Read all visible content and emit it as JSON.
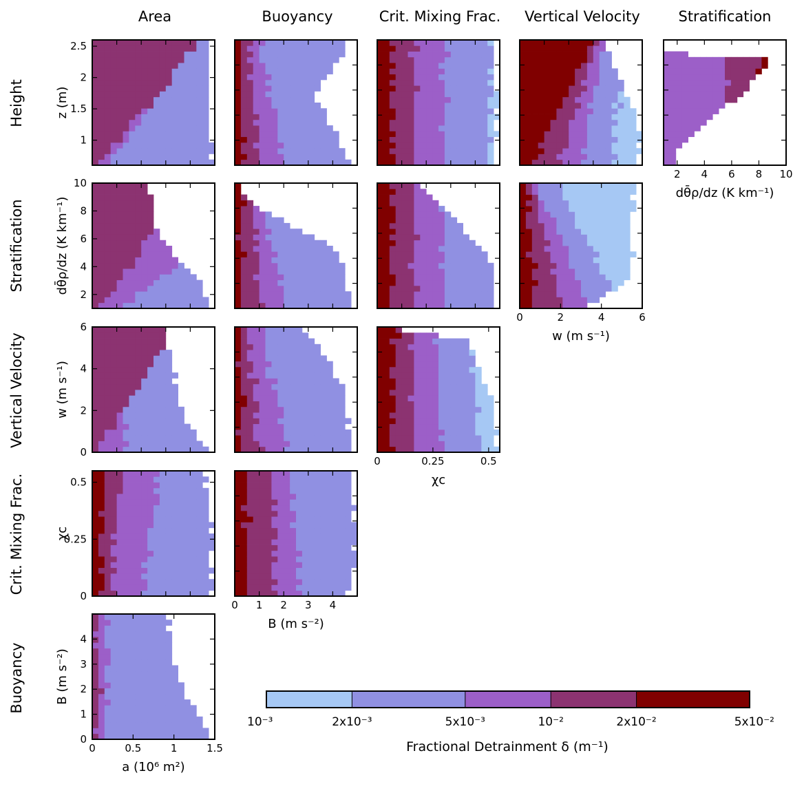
{
  "figure": {
    "column_titles": [
      "Area",
      "Buoyancy",
      "Crit. Mixing Frac.",
      "Vertical Velocity",
      "Stratification"
    ],
    "row_titles": [
      "Height",
      "Stratification",
      "Vertical Velocity",
      "Crit. Mixing Frac.",
      "Buoyancy"
    ],
    "colorbar": {
      "title": "Fractional Detrainment δ (m⁻¹)",
      "tick_labels": [
        "10⁻³",
        "2x10⁻³",
        "5x10⁻³",
        "10⁻²",
        "2x10⁻²",
        "5x10⁻²"
      ],
      "bins": [
        {
          "lo": 0.001,
          "hi": 0.002,
          "color": "#a6c8f4"
        },
        {
          "lo": 0.002,
          "hi": 0.005,
          "color": "#9090e2"
        },
        {
          "lo": 0.005,
          "hi": 0.01,
          "color": "#9c5fc8"
        },
        {
          "lo": 0.01,
          "hi": 0.02,
          "color": "#8c3371"
        },
        {
          "lo": 0.02,
          "hi": 0.05,
          "color": "#800000"
        }
      ]
    }
  },
  "chart_data": [
    {
      "type": "heatmap",
      "row": "Height",
      "column": "Area",
      "xlabel": "",
      "ylabel": "z (m)",
      "xlim": [
        0,
        1.5
      ],
      "ylim": [
        0.6,
        2.6
      ],
      "xticks": [],
      "yticks": [
        "1",
        "1.5",
        "2",
        "2.5"
      ],
      "ytick_values": [
        1,
        1.5,
        2,
        2.5
      ],
      "nx": 20,
      "ny": 22,
      "bounds": [
        [
          0,
          0.0
        ],
        [
          0,
          0.98
        ],
        [
          0.5,
          0.96
        ],
        [
          1,
          0.94
        ],
        [
          1,
          0.92
        ]
      ],
      "zones": [
        [
          0.04,
          0.9,
          0.01
        ],
        [
          0.12,
          0.86,
          0.005
        ],
        [
          1.5,
          1.5,
          0.003
        ]
      ]
    },
    {
      "type": "heatmap",
      "row": "Height",
      "column": "Buoyancy",
      "xlabel": "",
      "ylabel": "",
      "xlim": [
        0,
        5
      ],
      "ylim": [
        0.6,
        2.6
      ],
      "xticks": [],
      "yticks": [],
      "nx": 20,
      "ny": 22,
      "bounds": [
        [
          0,
          0.0
        ],
        [
          0,
          0.95
        ],
        [
          0.55,
          0.65
        ],
        [
          1,
          0.95
        ],
        [
          1,
          0.95
        ]
      ],
      "zones": [
        [
          0.05,
          0.05,
          0.03
        ],
        [
          0.22,
          0.12,
          0.015
        ],
        [
          0.42,
          0.2,
          0.007
        ],
        [
          1.5,
          1.5,
          0.003
        ]
      ]
    },
    {
      "type": "heatmap",
      "row": "Height",
      "column": "Crit. Mixing Frac.",
      "xlabel": "",
      "ylabel": "",
      "xlim": [
        0,
        0.55
      ],
      "ylim": [
        0.6,
        2.6
      ],
      "xticks": [],
      "yticks": [],
      "nx": 20,
      "ny": 22,
      "bounds": [
        [
          0,
          0.0
        ],
        [
          0,
          0.96
        ],
        [
          0.5,
          0.98
        ],
        [
          1,
          0.92
        ],
        [
          1,
          0.9
        ]
      ],
      "zones": [
        [
          0.12,
          0.12,
          0.03
        ],
        [
          0.3,
          0.3,
          0.014
        ],
        [
          0.55,
          0.55,
          0.007
        ],
        [
          0.92,
          0.92,
          0.003
        ],
        [
          1.5,
          1.5,
          0.0015
        ]
      ]
    },
    {
      "type": "heatmap",
      "row": "Height",
      "column": "Vertical Velocity",
      "xlabel": "",
      "ylabel": "",
      "xlim": [
        0,
        6
      ],
      "ylim": [
        0.6,
        2.6
      ],
      "xticks": [],
      "yticks": [],
      "nx": 20,
      "ny": 22,
      "bounds": [
        [
          0,
          0.05
        ],
        [
          0,
          0.95
        ],
        [
          0.25,
          1.0
        ],
        [
          1,
          0.7
        ],
        [
          1,
          0.55
        ]
      ],
      "zones": [
        [
          0.1,
          0.6,
          0.03
        ],
        [
          0.3,
          0.65,
          0.015
        ],
        [
          0.5,
          0.7,
          0.007
        ],
        [
          0.75,
          0.85,
          0.003
        ],
        [
          1.5,
          1.5,
          0.0015
        ]
      ]
    },
    {
      "type": "heatmap",
      "row": "Height",
      "column": "Stratification",
      "xlabel": "dθ̄ρ/dz (K km⁻¹)",
      "ylabel": "",
      "xlim": [
        1,
        10
      ],
      "ylim": [
        0.6,
        2.6
      ],
      "xticks": [
        "2",
        "4",
        "6",
        "8",
        "10"
      ],
      "xtick_values": [
        2,
        4,
        6,
        8,
        10
      ],
      "yticks": [],
      "nx": 20,
      "ny": 22,
      "bounds": [
        [
          0.1,
          0.1
        ],
        [
          0.4,
          0.4
        ],
        [
          0.55,
          0.65
        ],
        [
          0.85,
          0.85
        ],
        [
          0.9,
          0.0
        ]
      ],
      "zones": [
        [
          0.12,
          0.12,
          0.005
        ],
        [
          0.5,
          0.5,
          0.007
        ],
        [
          0.75,
          0.8,
          0.014
        ],
        [
          1.5,
          1.5,
          0.03
        ]
      ]
    },
    {
      "type": "heatmap",
      "row": "Stratification",
      "column": "Area",
      "xlabel": "",
      "ylabel": "dθ̄ρ/dz (K km⁻¹)",
      "xlim": [
        0,
        1.5
      ],
      "ylim": [
        1,
        10
      ],
      "xticks": [],
      "yticks": [
        "2",
        "4",
        "6",
        "8",
        "10"
      ],
      "ytick_values": [
        2,
        4,
        6,
        8,
        10
      ],
      "nx": 20,
      "ny": 22,
      "bounds": [
        [
          0,
          0.0
        ],
        [
          0,
          0.95
        ],
        [
          0.2,
          0.9
        ],
        [
          0.55,
          0.55
        ],
        [
          1,
          0.45
        ]
      ],
      "zones": [
        [
          0.04,
          0.8,
          0.01
        ],
        [
          0.25,
          1.5,
          0.007
        ],
        [
          1.5,
          1.5,
          0.003
        ]
      ]
    },
    {
      "type": "heatmap",
      "row": "Stratification",
      "column": "Buoyancy",
      "xlabel": "",
      "ylabel": "",
      "xlim": [
        0,
        5
      ],
      "ylim": [
        1,
        10
      ],
      "xticks": [],
      "yticks": [],
      "nx": 20,
      "ny": 22,
      "bounds": [
        [
          0,
          0.0
        ],
        [
          0,
          0.95
        ],
        [
          0.45,
          0.85
        ],
        [
          0.75,
          0.3
        ],
        [
          0.9,
          0.05
        ]
      ],
      "zones": [
        [
          0.05,
          0.05,
          0.03
        ],
        [
          0.22,
          0.12,
          0.015
        ],
        [
          0.42,
          0.2,
          0.007
        ],
        [
          1.5,
          1.5,
          0.003
        ]
      ]
    },
    {
      "type": "heatmap",
      "row": "Stratification",
      "column": "Crit. Mixing Frac.",
      "xlabel": "",
      "ylabel": "",
      "xlim": [
        0,
        0.55
      ],
      "ylim": [
        1,
        10
      ],
      "xticks": [],
      "yticks": [],
      "nx": 20,
      "ny": 22,
      "bounds": [
        [
          0,
          0.0
        ],
        [
          0,
          0.95
        ],
        [
          0.35,
          0.95
        ],
        [
          0.8,
          0.55
        ],
        [
          1,
          0.3
        ]
      ],
      "zones": [
        [
          0.12,
          0.12,
          0.03
        ],
        [
          0.3,
          0.3,
          0.014
        ],
        [
          0.55,
          0.55,
          0.007
        ],
        [
          1.5,
          1.5,
          0.003
        ]
      ]
    },
    {
      "type": "heatmap",
      "row": "Stratification",
      "column": "Vertical Velocity",
      "xlabel": "w (m s⁻¹)",
      "ylabel": "",
      "xlim": [
        0,
        6
      ],
      "ylim": [
        1,
        10
      ],
      "xticks": [
        "0",
        "2",
        "4",
        "6"
      ],
      "xtick_values": [
        0,
        2,
        4,
        6
      ],
      "yticks": [],
      "nx": 20,
      "ny": 22,
      "bounds": [
        [
          0,
          0.05
        ],
        [
          0,
          0.55
        ],
        [
          0.25,
          0.92
        ],
        [
          1,
          0.92
        ],
        [
          1,
          0.0
        ]
      ],
      "zones": [
        [
          0.12,
          0.05,
          0.03
        ],
        [
          0.35,
          0.1,
          0.014
        ],
        [
          0.58,
          0.15,
          0.007
        ],
        [
          0.85,
          0.3,
          0.003
        ],
        [
          1.5,
          1.5,
          0.0015
        ]
      ]
    },
    {
      "type": "heatmap",
      "row": "Vertical Velocity",
      "column": "Area",
      "xlabel": "",
      "ylabel": "w (m s⁻¹)",
      "xlim": [
        0,
        1.5
      ],
      "ylim": [
        0,
        6
      ],
      "xticks": [],
      "yticks": [
        "0",
        "2",
        "4",
        "6"
      ],
      "ytick_values": [
        0,
        2,
        4,
        6
      ],
      "nx": 20,
      "ny": 22,
      "bounds": [
        [
          0,
          0.05
        ],
        [
          0,
          0.95
        ],
        [
          0.3,
          0.75
        ],
        [
          0.7,
          0.65
        ],
        [
          1,
          0.6
        ]
      ],
      "zones": [
        [
          0.03,
          0.7,
          0.01
        ],
        [
          0.25,
          0.3,
          0.007
        ],
        [
          1.5,
          1.5,
          0.003
        ]
      ]
    },
    {
      "type": "heatmap",
      "row": "Vertical Velocity",
      "column": "Buoyancy",
      "xlabel": "",
      "ylabel": "",
      "xlim": [
        0,
        5
      ],
      "ylim": [
        0,
        6
      ],
      "xticks": [],
      "yticks": [],
      "nx": 20,
      "ny": 22,
      "bounds": [
        [
          0,
          0.0
        ],
        [
          0,
          0.95
        ],
        [
          0.5,
          0.9
        ],
        [
          0.9,
          0.65
        ],
        [
          0.95,
          0.55
        ]
      ],
      "zones": [
        [
          0.05,
          0.05,
          0.03
        ],
        [
          0.2,
          0.12,
          0.015
        ],
        [
          0.45,
          0.2,
          0.007
        ],
        [
          1.5,
          1.5,
          0.003
        ]
      ]
    },
    {
      "type": "heatmap",
      "row": "Vertical Velocity",
      "column": "Crit. Mixing Frac.",
      "xlabel": "χc",
      "ylabel": "",
      "xlim": [
        0,
        0.55
      ],
      "ylim": [
        0,
        6
      ],
      "xticks": [
        "0",
        "0.25",
        "0.5"
      ],
      "xtick_values": [
        0,
        0.25,
        0.5
      ],
      "yticks": [],
      "nx": 20,
      "ny": 22,
      "bounds": [
        [
          0,
          0.0
        ],
        [
          0,
          0.97
        ],
        [
          0.4,
          0.95
        ],
        [
          0.9,
          0.75
        ],
        [
          1,
          0.0
        ]
      ],
      "zones": [
        [
          0.12,
          0.15,
          0.03
        ],
        [
          0.32,
          0.28,
          0.014
        ],
        [
          0.55,
          0.45,
          0.007
        ],
        [
          0.85,
          0.75,
          0.003
        ],
        [
          1.5,
          1.5,
          0.0015
        ]
      ]
    },
    {
      "type": "heatmap",
      "row": "Crit. Mixing Frac.",
      "column": "Area",
      "xlabel": "",
      "ylabel": "χc",
      "xlim": [
        0,
        1.5
      ],
      "ylim": [
        0,
        0.55
      ],
      "xticks": [],
      "yticks": [
        "0",
        "0.25",
        "0.5"
      ],
      "ytick_values": [
        0,
        0.25,
        0.5
      ],
      "nx": 20,
      "ny": 22,
      "bounds": [
        [
          0,
          0.0
        ],
        [
          0,
          0.97
        ],
        [
          0.5,
          0.97
        ],
        [
          1,
          0.92
        ],
        [
          1,
          0.0
        ]
      ],
      "zones": [
        [
          0.08,
          0.08,
          0.03
        ],
        [
          0.15,
          0.25,
          0.01
        ],
        [
          0.4,
          0.55,
          0.007
        ],
        [
          1.5,
          1.5,
          0.003
        ]
      ]
    },
    {
      "type": "heatmap",
      "row": "Crit. Mixing Frac.",
      "column": "Buoyancy",
      "xlabel": "B (m s⁻²)",
      "ylabel": "",
      "xlim": [
        0,
        5
      ],
      "ylim": [
        0,
        0.55
      ],
      "xticks": [
        "0",
        "1",
        "2",
        "3",
        "4"
      ],
      "xtick_values": [
        0,
        1,
        2,
        3,
        4
      ],
      "yticks": [],
      "nx": 20,
      "ny": 22,
      "bounds": [
        [
          0,
          0.0
        ],
        [
          0,
          0.92
        ],
        [
          0.2,
          0.98
        ],
        [
          0.6,
          0.98
        ],
        [
          1,
          0.95
        ]
      ],
      "zones": [
        [
          0.1,
          0.1,
          0.03
        ],
        [
          0.35,
          0.3,
          0.014
        ],
        [
          0.55,
          0.45,
          0.007
        ],
        [
          1.5,
          1.5,
          0.003
        ]
      ]
    },
    {
      "type": "heatmap",
      "row": "Buoyancy",
      "column": "Area",
      "xlabel": "a (10⁶ m²)",
      "ylabel": "B (m s⁻²)",
      "xlim": [
        0,
        1.5
      ],
      "ylim": [
        0,
        5
      ],
      "xticks": [
        "0",
        "0.5",
        "1",
        "1.5"
      ],
      "xtick_values": [
        0,
        0.5,
        1,
        1.5
      ],
      "yticks": [
        "0",
        "1",
        "2",
        "3",
        "4"
      ],
      "ytick_values": [
        0,
        1,
        2,
        3,
        4
      ],
      "nx": 20,
      "ny": 22,
      "bounds": [
        [
          0,
          0.0
        ],
        [
          0,
          0.98
        ],
        [
          0.3,
          0.8
        ],
        [
          0.65,
          0.66
        ],
        [
          1,
          0.62
        ]
      ],
      "zones": [
        [
          0.05,
          0.05,
          0.01
        ],
        [
          0.1,
          0.12,
          0.007
        ],
        [
          1.5,
          1.5,
          0.003
        ]
      ]
    }
  ]
}
